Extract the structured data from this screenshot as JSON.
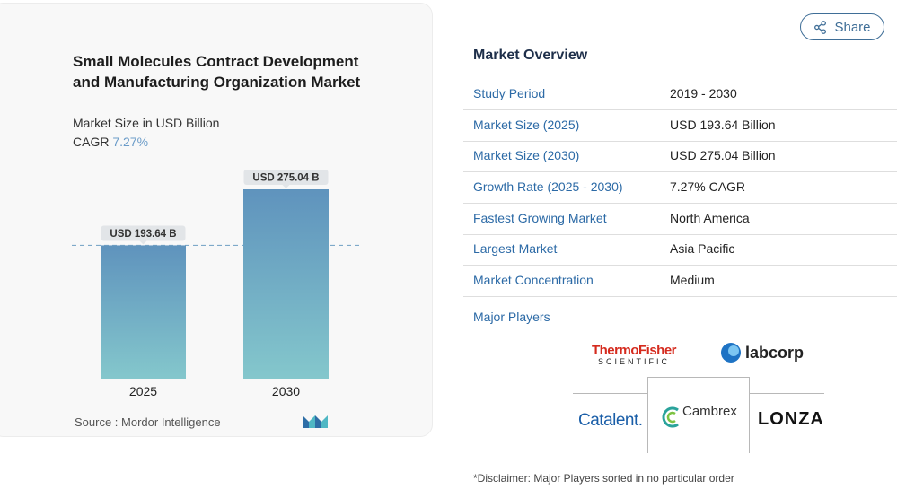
{
  "chart_data": {
    "type": "bar",
    "title": "Small Molecules Contract Development and Manufacturing Organization Market",
    "subtitle": "Market Size in USD Billion",
    "cagr_label": "CAGR",
    "cagr_value": "7.27%",
    "categories": [
      "2025",
      "2030"
    ],
    "values": [
      193.64,
      275.04
    ],
    "data_labels": [
      "USD 193.64 B",
      "USD 275.04 B"
    ],
    "ylim": [
      0,
      275.04
    ],
    "reference_line": "dashed line at 2025 value",
    "source": "Source :  Mordor Intelligence",
    "colors": {
      "bar_top": "#5f93bd",
      "bar_bottom": "#84c7cc",
      "label_bg": "#e2e5e8",
      "dash": "#7ea9c9"
    }
  },
  "share": {
    "label": "Share",
    "icon": "share-icon"
  },
  "overview": {
    "title": "Market Overview",
    "rows": [
      {
        "key": "Study Period",
        "value": "2019 - 2030"
      },
      {
        "key": "Market Size (2025)",
        "value": "USD 193.64 Billion"
      },
      {
        "key": "Market Size (2030)",
        "value": "USD 275.04 Billion"
      },
      {
        "key": "Growth Rate (2025 - 2030)",
        "value": "7.27% CAGR"
      },
      {
        "key": "Fastest Growing Market",
        "value": "North America"
      },
      {
        "key": "Largest Market",
        "value": "Asia Pacific"
      },
      {
        "key": "Market Concentration",
        "value": "Medium"
      }
    ],
    "major_players_label": "Major Players",
    "players": {
      "thermo_top": "ThermoFisher",
      "thermo_bottom": "SCIENTIFIC",
      "labcorp": "labcorp",
      "catalent": "Catalent.",
      "cambrex": "Cambrex",
      "lonza": "LONZA"
    },
    "disclaimer": "*Disclaimer: Major Players sorted in no particular order"
  }
}
